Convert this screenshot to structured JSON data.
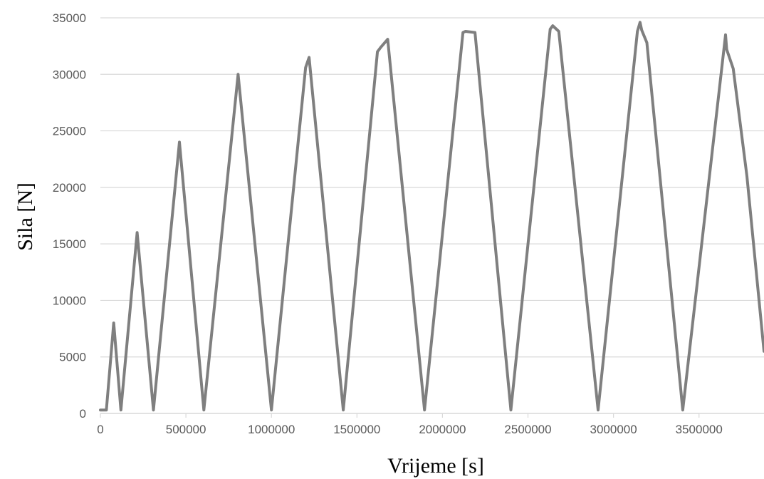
{
  "chart_data": {
    "type": "line",
    "title": "",
    "xlabel": "Vrijeme [s]",
    "ylabel": "Sila [N]",
    "xlim": [
      0,
      3880000
    ],
    "ylim": [
      0,
      35000
    ],
    "xticks": [
      0,
      500000,
      1000000,
      1500000,
      2000000,
      2500000,
      3000000,
      3500000
    ],
    "yticks": [
      0,
      5000,
      10000,
      15000,
      20000,
      25000,
      30000,
      35000
    ],
    "grid": false,
    "legend": "none",
    "line_color": "#7f7f7f",
    "series": [
      {
        "x": [
          0,
          35000,
          78000,
          120000,
          215000,
          310000,
          462000,
          605000,
          805000,
          1000000,
          1200000,
          1220000,
          1420000,
          1620000,
          1640000,
          1680000,
          1895000,
          2120000,
          2135000,
          2190000,
          2400000,
          2630000,
          2645000,
          2680000,
          2910000,
          3140000,
          3155000,
          3165000,
          3195000,
          3405000,
          3655000,
          3662000,
          3700000,
          3780000,
          3880000
        ],
        "y": [
          300,
          300,
          8000,
          300,
          16000,
          300,
          24000,
          300,
          30000,
          300,
          30600,
          31500,
          300,
          32000,
          32400,
          33100,
          300,
          33700,
          33800,
          33700,
          300,
          34000,
          34300,
          33800,
          300,
          33800,
          34600,
          33900,
          32800,
          300,
          33500,
          32200,
          30500,
          21000,
          5500
        ]
      }
    ]
  }
}
